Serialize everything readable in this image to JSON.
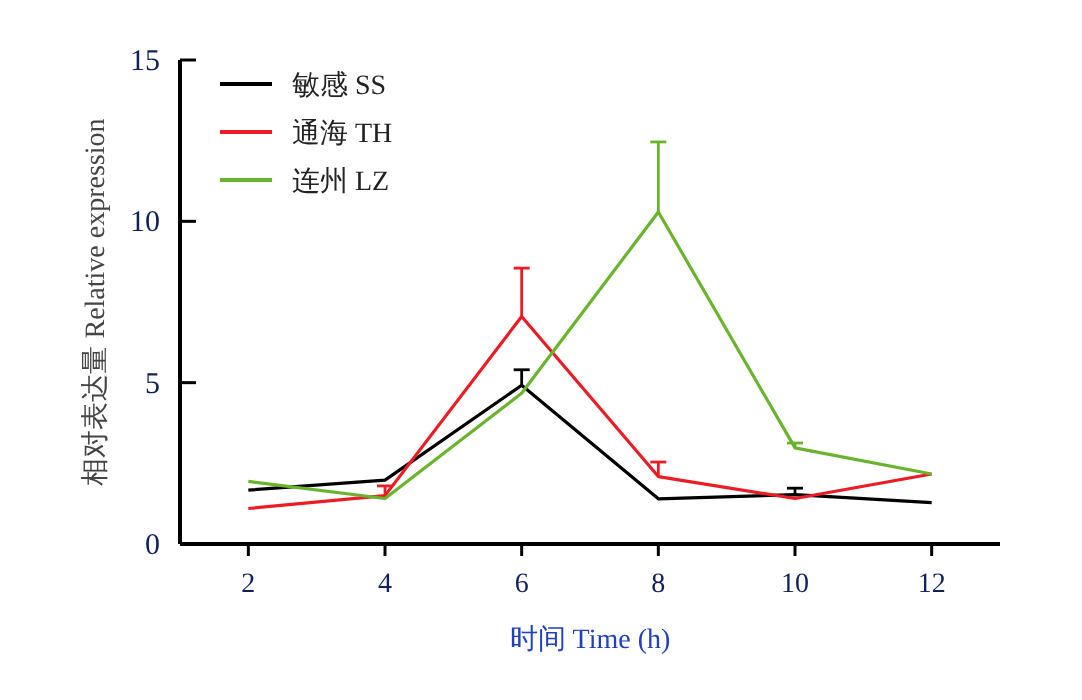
{
  "chart_data": {
    "type": "line",
    "xlabel": "时间 Time (h)",
    "ylabel": "相对表达量 Relative expression",
    "x": [
      2,
      4,
      6,
      8,
      10,
      12
    ],
    "xlim": [
      1,
      13
    ],
    "ylim": [
      0,
      15
    ],
    "xticks": [
      2,
      4,
      6,
      8,
      10,
      12
    ],
    "yticks": [
      0,
      5,
      10,
      15
    ],
    "legend": "top left",
    "series": [
      {
        "name": "敏感 SS",
        "color": "#000000",
        "values": [
          1.67,
          1.98,
          4.92,
          1.4,
          1.53,
          1.28
        ],
        "errors": [
          null,
          null,
          [
            4.92,
            5.4
          ],
          null,
          [
            1.53,
            1.73
          ],
          null
        ]
      },
      {
        "name": "通海 TH",
        "color": "#ed1c24",
        "values": [
          1.1,
          1.5,
          7.05,
          2.09,
          1.41,
          2.17
        ],
        "errors": [
          null,
          [
            1.5,
            1.8
          ],
          [
            7.05,
            8.55
          ],
          [
            2.09,
            2.54
          ],
          null,
          null
        ]
      },
      {
        "name": "连州 LZ",
        "color": "#6ab42d",
        "values": [
          1.94,
          1.41,
          4.67,
          10.29,
          2.98,
          2.17
        ],
        "errors": [
          null,
          null,
          null,
          [
            10.29,
            12.46
          ],
          [
            2.98,
            3.13
          ],
          null
        ]
      }
    ]
  }
}
